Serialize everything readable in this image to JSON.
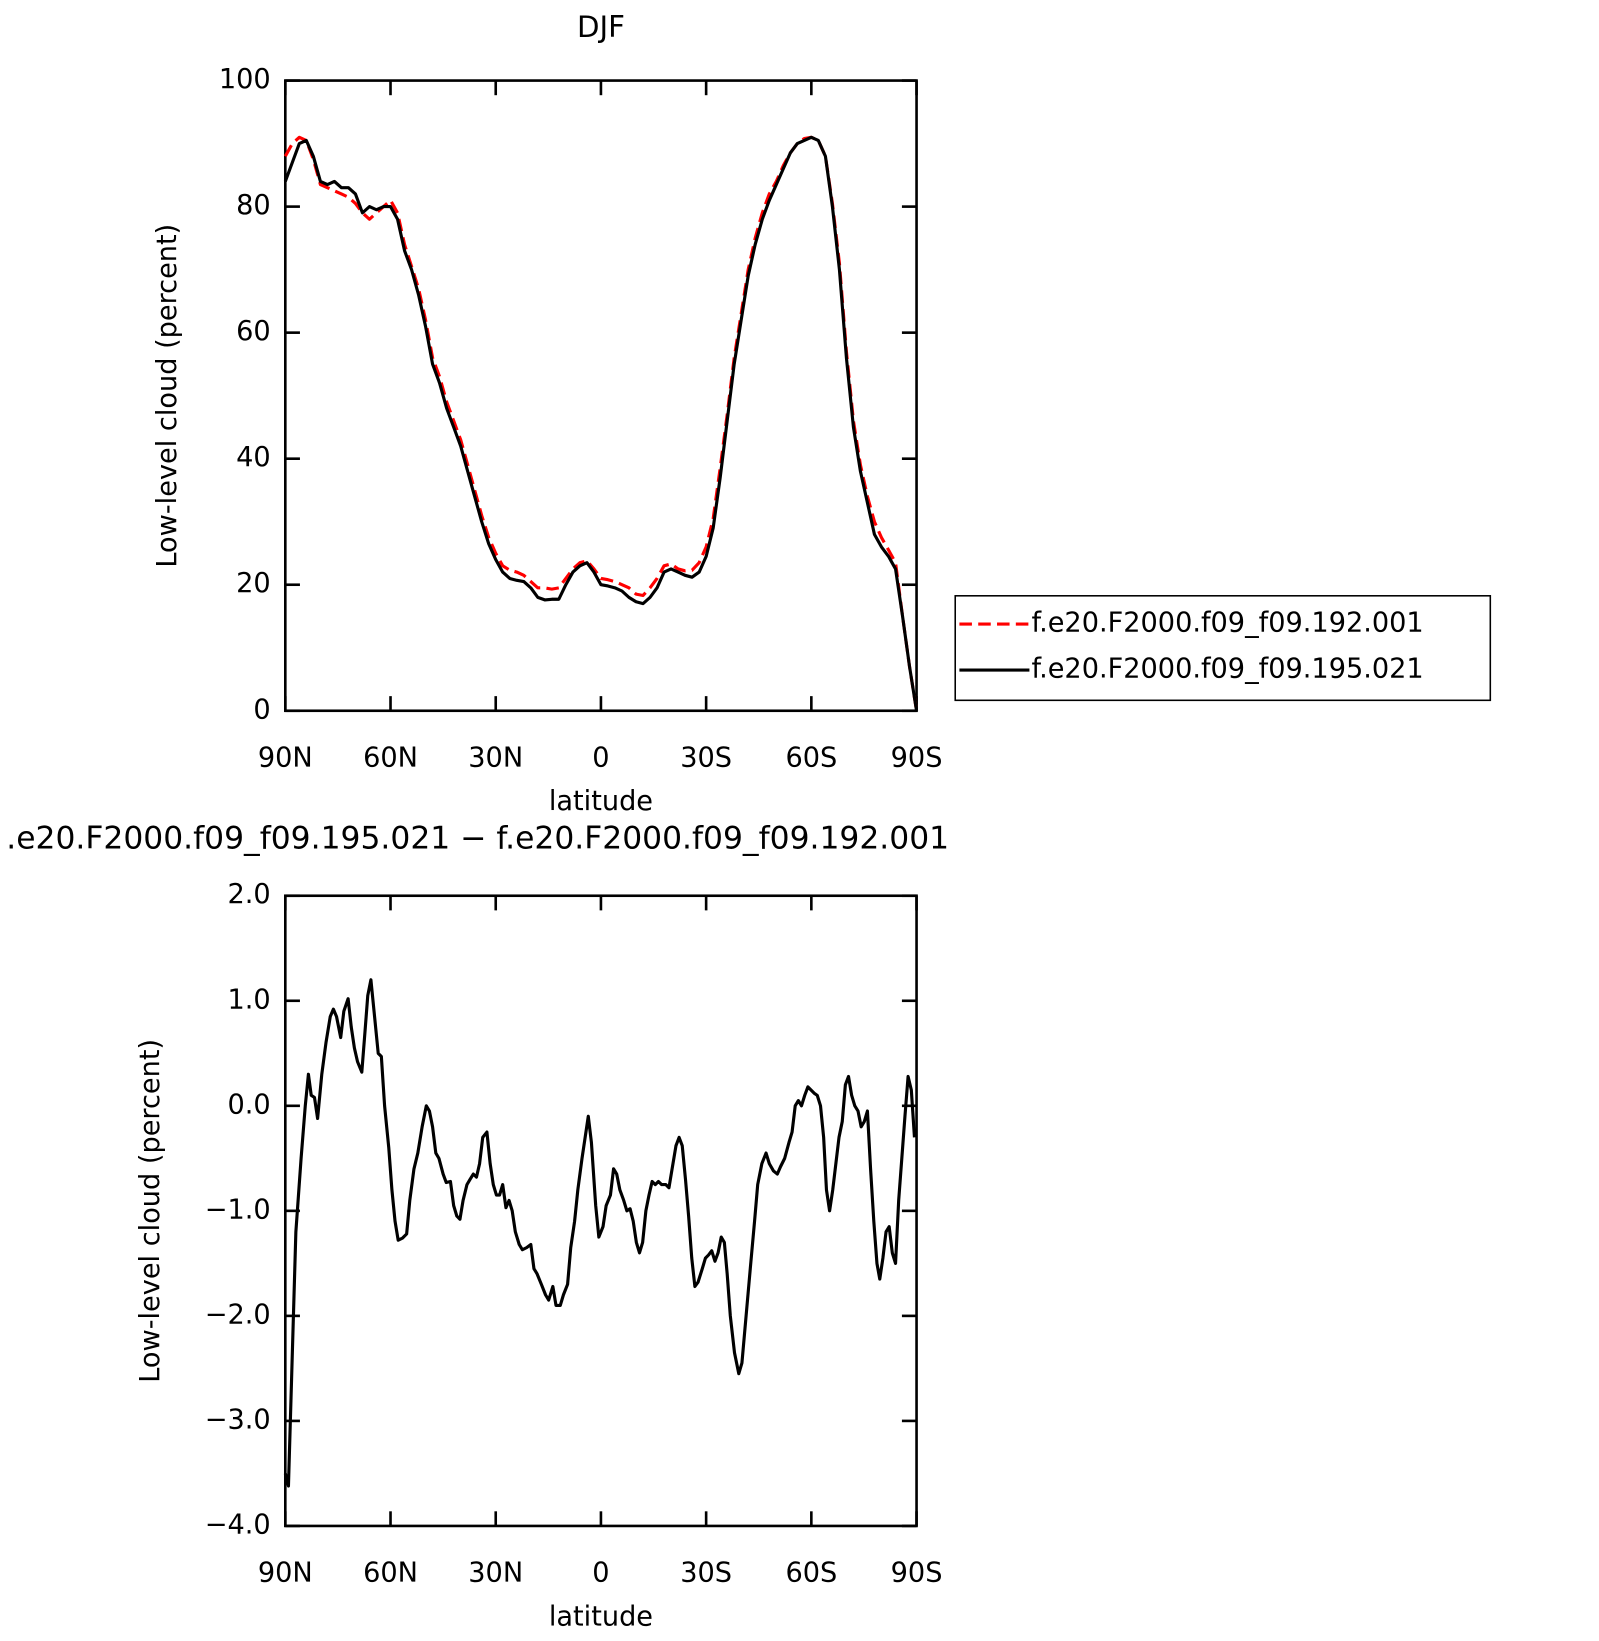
{
  "chart_data": [
    {
      "type": "line",
      "title": "DJF",
      "x_label": "latitude",
      "y_label": "Low-level cloud (percent)",
      "x": [
        90,
        88,
        86,
        84,
        82,
        80,
        78,
        76,
        74,
        72,
        70,
        68,
        66,
        64,
        62,
        60,
        58,
        56,
        54,
        52,
        50,
        48,
        46,
        44,
        42,
        40,
        38,
        36,
        34,
        32,
        30,
        28,
        26,
        24,
        22,
        20,
        18,
        16,
        14,
        12,
        10,
        8,
        6,
        4,
        2,
        0,
        -2,
        -4,
        -6,
        -8,
        -10,
        -12,
        -14,
        -16,
        -18,
        -20,
        -22,
        -24,
        -26,
        -28,
        -30,
        -32,
        -34,
        -36,
        -38,
        -40,
        -42,
        -44,
        -46,
        -48,
        -50,
        -52,
        -54,
        -56,
        -58,
        -60,
        -62,
        -64,
        -66,
        -68,
        -70,
        -72,
        -74,
        -76,
        -78,
        -80,
        -82,
        -84,
        -86,
        -88,
        -90
      ],
      "xlim": [
        90,
        -90
      ],
      "xticks": [
        {
          "value": 90,
          "label": "90N"
        },
        {
          "value": 60,
          "label": "60N"
        },
        {
          "value": 30,
          "label": "30N"
        },
        0,
        {
          "value": -30,
          "label": "30S"
        },
        {
          "value": -60,
          "label": "60S"
        },
        {
          "value": -90,
          "label": "90S"
        }
      ],
      "ylim": [
        0,
        100
      ],
      "yticks": [
        0,
        20,
        40,
        60,
        80,
        100
      ],
      "legend": "right",
      "series": [
        {
          "name": "f.e20.F2000.f09_f09.192.001",
          "color": "#ff0000",
          "dash": "dashed",
          "values": [
            88,
            90,
            91,
            90.5,
            87.5,
            83.5,
            83,
            82.5,
            82,
            81.5,
            80.5,
            79,
            78,
            79,
            80,
            81,
            79,
            74,
            70.5,
            67,
            62,
            56,
            53,
            49,
            46,
            43,
            39,
            35,
            31,
            27.5,
            25,
            23,
            22.3,
            22,
            21.5,
            20.5,
            19.5,
            19.5,
            19.3,
            19.5,
            21,
            22.5,
            23.5,
            23.8,
            22.5,
            21,
            20.8,
            20.5,
            20,
            19.5,
            18.5,
            18.3,
            19.5,
            21,
            23,
            23.3,
            22.5,
            22.2,
            22.3,
            23.5,
            26,
            30.5,
            38.5,
            47,
            56,
            63,
            70,
            75,
            79,
            82,
            84,
            86.5,
            88.5,
            90,
            90.8,
            91,
            90.5,
            88,
            80.5,
            71,
            57,
            46,
            39,
            34,
            30,
            27.5,
            25.5,
            23.5,
            15,
            7,
            0
          ]
        },
        {
          "name": "f.e20.F2000.f09_f09.195.021",
          "color": "#000000",
          "dash": "solid",
          "values": [
            84,
            87,
            90,
            90.5,
            88,
            84,
            83.5,
            84,
            83,
            83,
            82,
            79,
            80,
            79.5,
            80,
            80,
            78,
            73,
            70,
            66,
            61,
            55,
            52,
            48,
            45,
            42,
            38,
            34,
            30,
            26.5,
            24,
            22,
            21,
            20.7,
            20.5,
            19.5,
            18,
            17.6,
            17.7,
            17.7,
            20,
            22,
            23,
            23.5,
            22,
            20,
            19.8,
            19.5,
            19,
            18,
            17.3,
            17,
            18,
            19.5,
            22,
            22.5,
            22,
            21.5,
            21.2,
            22,
            24.5,
            29,
            37,
            46,
            55,
            62,
            69,
            74,
            78,
            81,
            83.5,
            86,
            88.5,
            90,
            90.5,
            91,
            90.5,
            88,
            80,
            70,
            56,
            45,
            38,
            33,
            28,
            26,
            24.5,
            22.5,
            15,
            7,
            0
          ]
        }
      ]
    },
    {
      "type": "line",
      "title": ".e20.F2000.f09_f09.195.021 − f.e20.F2000.f09_f09.192.001",
      "x_label": "latitude",
      "y_label": "Low-level cloud (percent)",
      "x": [
        90,
        89.1,
        88.2,
        87,
        85.5,
        84.3,
        83.4,
        82.6,
        81.7,
        80.8,
        79.6,
        78.4,
        77.2,
        76.3,
        75.4,
        74.2,
        73.3,
        72.1,
        71.2,
        70.3,
        69.4,
        68.2,
        67.3,
        66.5,
        65.6,
        64.7,
        63.5,
        62.6,
        61.7,
        60.5,
        59.6,
        58.7,
        57.8,
        56.6,
        55.4,
        54.5,
        53.3,
        52.2,
        51,
        49.8,
        48.9,
        48,
        47.1,
        46.2,
        45,
        44.1,
        42.9,
        42,
        41.1,
        40.2,
        39.3,
        38.2,
        37.3,
        36.4,
        35.5,
        34.6,
        33.7,
        32.5,
        31.6,
        30.7,
        29.8,
        28.9,
        28,
        27.1,
        26.2,
        25.3,
        24.4,
        23.3,
        22.4,
        21.2,
        20,
        19.1,
        18.2,
        17,
        15.8,
        14.9,
        13.7,
        12.8,
        11.6,
        10.7,
        9.5,
        8.6,
        7.5,
        6.6,
        5.4,
        4.5,
        3.6,
        2.7,
        1.5,
        0.6,
        -0.6,
        -1.5,
        -2.7,
        -3.6,
        -4.5,
        -5.4,
        -6.5,
        -7.4,
        -8.3,
        -9.2,
        -10.1,
        -11,
        -11.9,
        -12.8,
        -13.7,
        -14.6,
        -15.5,
        -16.4,
        -17.3,
        -18.5,
        -19.4,
        -20.3,
        -21.4,
        -22.3,
        -23.2,
        -24.1,
        -25,
        -25.9,
        -26.8,
        -27.7,
        -28.9,
        -29.8,
        -30.7,
        -31.6,
        -32.5,
        -33.4,
        -34.3,
        -35.2,
        -36,
        -36.9,
        -38.1,
        -39.3,
        -40.2,
        -41.4,
        -42.6,
        -43.8,
        -44.7,
        -45.9,
        -47.1,
        -48,
        -49.2,
        -50.3,
        -51.2,
        -52.4,
        -53.6,
        -54.5,
        -55.4,
        -56.3,
        -57.2,
        -58.1,
        -59,
        -59.9,
        -60.8,
        -61.7,
        -62.6,
        -63.5,
        -64.3,
        -65.2,
        -66.1,
        -67,
        -67.9,
        -68.8,
        -69.7,
        -70.6,
        -71.5,
        -72.4,
        -73.3,
        -74.2,
        -75.1,
        -76,
        -76.9,
        -77.8,
        -78.7,
        -79.5,
        -80.4,
        -81.3,
        -82.2,
        -83.1,
        -84,
        -84.9,
        -85.8,
        -86.7,
        -87.6,
        -88.5,
        -89.4
      ],
      "xlim": [
        90,
        -90
      ],
      "xticks": [
        {
          "value": 90,
          "label": "90N"
        },
        {
          "value": 60,
          "label": "60N"
        },
        {
          "value": 30,
          "label": "30N"
        },
        0,
        {
          "value": -30,
          "label": "30S"
        },
        {
          "value": -60,
          "label": "60S"
        },
        {
          "value": -90,
          "label": "90S"
        }
      ],
      "ylim": [
        -4,
        2
      ],
      "yticks": [
        {
          "value": -4,
          "label": "−4.0"
        },
        {
          "value": -3,
          "label": "−3.0"
        },
        {
          "value": -2,
          "label": "−2.0"
        },
        {
          "value": -1,
          "label": "−1.0"
        },
        {
          "value": 0,
          "label": "0.0"
        },
        {
          "value": 1,
          "label": "1.0"
        },
        {
          "value": 2,
          "label": "2.0"
        }
      ],
      "series": [
        {
          "color": "#000000",
          "dash": "solid",
          "values": [
            -3.5,
            -3.62,
            -2.6,
            -1.2,
            -0.5,
            0,
            0.3,
            0.1,
            0.08,
            -0.12,
            0.3,
            0.6,
            0.85,
            0.92,
            0.85,
            0.65,
            0.9,
            1.02,
            0.75,
            0.55,
            0.42,
            0.32,
            0.7,
            1.05,
            1.2,
            0.9,
            0.5,
            0.47,
            0,
            -0.4,
            -0.8,
            -1.1,
            -1.28,
            -1.26,
            -1.22,
            -0.9,
            -0.6,
            -0.45,
            -0.2,
            0,
            -0.05,
            -0.2,
            -0.45,
            -0.5,
            -0.65,
            -0.73,
            -0.72,
            -0.95,
            -1.05,
            -1.08,
            -0.9,
            -0.75,
            -0.7,
            -0.65,
            -0.68,
            -0.55,
            -0.3,
            -0.25,
            -0.55,
            -0.75,
            -0.85,
            -0.85,
            -0.75,
            -0.97,
            -0.9,
            -1,
            -1.2,
            -1.32,
            -1.37,
            -1.35,
            -1.32,
            -1.55,
            -1.6,
            -1.7,
            -1.8,
            -1.85,
            -1.72,
            -1.9,
            -1.9,
            -1.8,
            -1.7,
            -1.35,
            -1.1,
            -0.8,
            -0.5,
            -0.3,
            -0.1,
            -0.35,
            -0.95,
            -1.25,
            -1.15,
            -0.95,
            -0.85,
            -0.6,
            -0.65,
            -0.8,
            -0.9,
            -1,
            -0.98,
            -1.1,
            -1.3,
            -1.4,
            -1.3,
            -1,
            -0.85,
            -0.72,
            -0.75,
            -0.72,
            -0.75,
            -0.75,
            -0.78,
            -0.6,
            -0.38,
            -0.3,
            -0.38,
            -0.7,
            -1.05,
            -1.45,
            -1.72,
            -1.68,
            -1.55,
            -1.45,
            -1.42,
            -1.38,
            -1.48,
            -1.4,
            -1.25,
            -1.3,
            -1.6,
            -2,
            -2.35,
            -2.55,
            -2.45,
            -2,
            -1.55,
            -1.1,
            -0.75,
            -0.55,
            -0.45,
            -0.55,
            -0.62,
            -0.65,
            -0.58,
            -0.5,
            -0.35,
            -0.25,
            0,
            0.05,
            0,
            0.1,
            0.18,
            0.15,
            0.12,
            0.1,
            0,
            -0.3,
            -0.8,
            -1,
            -0.8,
            -0.55,
            -0.3,
            -0.15,
            0.2,
            0.28,
            0.1,
            0,
            -0.05,
            -0.2,
            -0.15,
            -0.05,
            -0.6,
            -1.1,
            -1.5,
            -1.65,
            -1.45,
            -1.2,
            -1.15,
            -1.4,
            -1.5,
            -0.9,
            -0.5,
            -0.1,
            0.28,
            0.15,
            -0.3
          ]
        }
      ]
    }
  ]
}
